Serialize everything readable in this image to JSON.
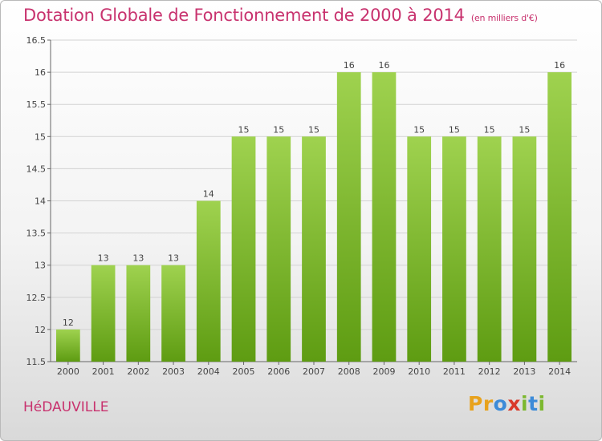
{
  "header": {
    "title": "Dotation Globale de Fonctionnement de 2000 à 2014",
    "unit": "(en milliers d'€)"
  },
  "footer": {
    "commune": "HéDAUVILLE",
    "logo": [
      "P",
      "r",
      "o",
      "x",
      "i",
      "t",
      "i"
    ]
  },
  "colors": {
    "title": "#c8326e",
    "bar_top": "#9fd24f",
    "bar_bottom": "#5e9c12",
    "logo_letters": [
      "#e8a21c",
      "#e8a21c",
      "#3d8bd8",
      "#d93a2b",
      "#7cb82f",
      "#3d8bd8",
      "#7cb82f"
    ]
  },
  "chart_data": {
    "type": "bar",
    "categories": [
      "2000",
      "2001",
      "2002",
      "2003",
      "2004",
      "2005",
      "2006",
      "2007",
      "2008",
      "2009",
      "2010",
      "2011",
      "2012",
      "2013",
      "2014"
    ],
    "values": [
      12,
      13,
      13,
      13,
      14,
      15,
      15,
      15,
      16,
      16,
      15,
      15,
      15,
      15,
      16
    ],
    "data_labels": [
      "12",
      "13",
      "13",
      "13",
      "14",
      "15",
      "15",
      "15",
      "16",
      "16",
      "15",
      "15",
      "15",
      "15",
      "16"
    ],
    "yticks": [
      "11.5",
      "12",
      "12.5",
      "13",
      "13.5",
      "14",
      "14.5",
      "15",
      "15.5",
      "16",
      "16.5"
    ],
    "ylim": [
      11.5,
      16.5
    ],
    "grid": true,
    "legend": "none"
  }
}
